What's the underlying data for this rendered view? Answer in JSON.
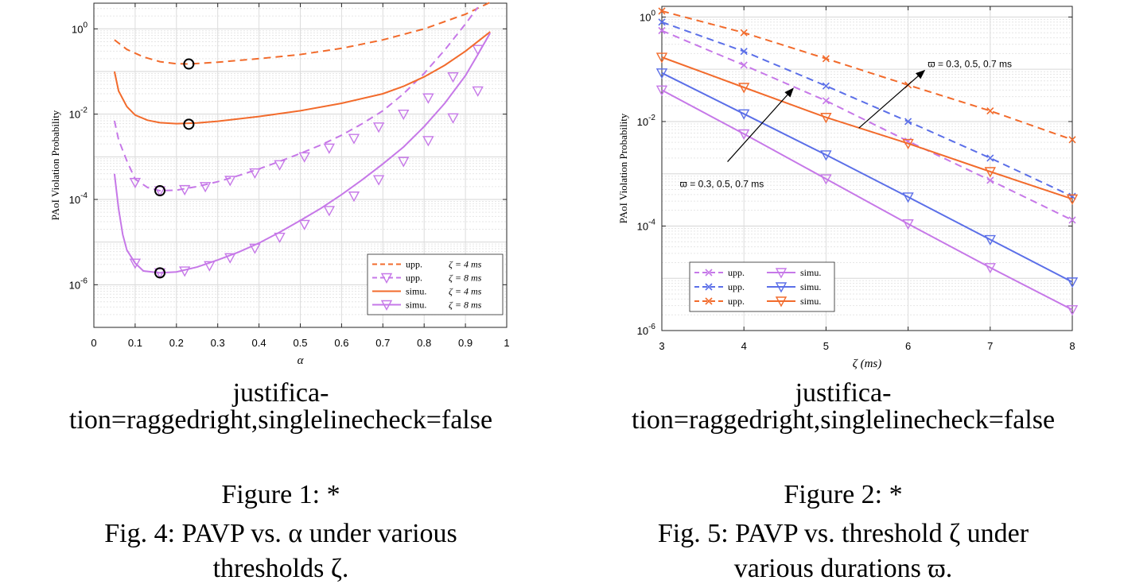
{
  "figures": [
    {
      "justification": "justifica-\ntion=raggedright,singlelinecheck=false",
      "figure_label": "Figure 1: *",
      "description": "Fig. 4: PAVP vs. α under various\nthresholds ζ."
    },
    {
      "justification": "justifica-\ntion=raggedright,singlelinecheck=false",
      "figure_label": "Figure 2: *",
      "description": "Fig. 5: PAVP vs. threshold ζ under\nvarious durations ϖ."
    }
  ],
  "chart_data": [
    {
      "type": "line",
      "xlabel": "α",
      "ylabel": "PAoI Violation Probability",
      "xlim": [
        0,
        1
      ],
      "ylim": [
        1e-07,
        4
      ],
      "yscale": "log",
      "grid": true,
      "xticks": [
        0,
        0.1,
        0.2,
        0.3,
        0.4,
        0.5,
        0.6,
        0.7,
        0.8,
        0.9,
        1
      ],
      "xtick_labels": [
        "0",
        "0.1",
        "0.2",
        "0.3",
        "0.4",
        "0.5",
        "0.6",
        "0.7",
        "0.8",
        "0.9",
        "1"
      ],
      "yticks": [
        1e-06,
        0.0001,
        0.01,
        1
      ],
      "ytick_labels": [
        {
          "base": "10",
          "exp": "-6"
        },
        {
          "base": "10",
          "exp": "-4"
        },
        {
          "base": "10",
          "exp": "-2"
        },
        {
          "base": "10",
          "exp": "0"
        }
      ],
      "legend_position": "bottom-right",
      "series": [
        {
          "name": "upp.   ζ = 4 ms",
          "label": "upp.",
          "param": "ζ = 4 ms",
          "color": "#f26b2c",
          "dash": true,
          "marker": "none",
          "x": [
            0.05,
            0.08,
            0.12,
            0.16,
            0.2,
            0.23,
            0.3,
            0.4,
            0.5,
            0.6,
            0.7,
            0.8,
            0.9,
            0.96
          ],
          "y": [
            0.55,
            0.33,
            0.22,
            0.17,
            0.152,
            0.15,
            0.165,
            0.2,
            0.25,
            0.35,
            0.55,
            1.0,
            2.2,
            4.2
          ]
        },
        {
          "name": "upp.   ζ = 8 ms",
          "label": "upp.",
          "param": "ζ = 8 ms",
          "color": "#c678e8",
          "dash": true,
          "marker": "triangle",
          "x": [
            0.05,
            0.06,
            0.08,
            0.1,
            0.13,
            0.16,
            0.2,
            0.25,
            0.3,
            0.35,
            0.4,
            0.45,
            0.5,
            0.55,
            0.6,
            0.65,
            0.7,
            0.75,
            0.8,
            0.85,
            0.9,
            0.93
          ],
          "y": [
            0.007,
            0.0025,
            0.0008,
            0.0003,
            0.00019,
            0.00016,
            0.000165,
            0.0002,
            0.00026,
            0.00036,
            0.00052,
            0.00078,
            0.0012,
            0.0019,
            0.0032,
            0.006,
            0.012,
            0.03,
            0.09,
            0.32,
            1.3,
            3.2
          ],
          "marker_x": [
            0.1,
            0.16,
            0.22,
            0.27,
            0.33,
            0.39,
            0.45,
            0.51,
            0.57,
            0.63,
            0.69,
            0.75,
            0.81,
            0.87,
            0.93
          ],
          "marker_y": [
            0.00025,
            0.00016,
            0.00017,
            0.0002,
            0.00028,
            0.00042,
            0.00065,
            0.001,
            0.0016,
            0.0027,
            0.005,
            0.01,
            0.024,
            0.075,
            0.33
          ]
        },
        {
          "name": "simu.   ζ = 4 ms",
          "label": "simu.",
          "param": "ζ = 4 ms",
          "color": "#f26b2c",
          "dash": false,
          "marker": "none",
          "x": [
            0.05,
            0.06,
            0.08,
            0.1,
            0.13,
            0.16,
            0.2,
            0.25,
            0.3,
            0.4,
            0.5,
            0.6,
            0.7,
            0.75,
            0.8,
            0.85,
            0.9,
            0.96
          ],
          "y": [
            0.1,
            0.035,
            0.015,
            0.0095,
            0.0072,
            0.0063,
            0.006,
            0.0062,
            0.0068,
            0.0088,
            0.012,
            0.018,
            0.03,
            0.045,
            0.075,
            0.14,
            0.3,
            0.85
          ]
        },
        {
          "name": "simu.   ζ = 8 ms",
          "label": "simu.",
          "param": "ζ = 8 ms",
          "color": "#c678e8",
          "dash": false,
          "marker": "triangle",
          "x": [
            0.05,
            0.06,
            0.07,
            0.08,
            0.1,
            0.12,
            0.16,
            0.2,
            0.25,
            0.3,
            0.35,
            0.4,
            0.45,
            0.5,
            0.55,
            0.6,
            0.65,
            0.7,
            0.75,
            0.8,
            0.85,
            0.9,
            0.93,
            0.96
          ],
          "y": [
            0.0004,
            6e-05,
            1.5e-05,
            6.5e-06,
            3.2e-06,
            2.1e-06,
            1.9e-06,
            2e-06,
            2.6e-06,
            3.8e-06,
            5.8e-06,
            9.5e-06,
            1.7e-05,
            3.2e-05,
            6.2e-05,
            0.00013,
            0.00029,
            0.00068,
            0.0017,
            0.0051,
            0.018,
            0.08,
            0.25,
            0.8
          ],
          "marker_x": [
            0.1,
            0.16,
            0.22,
            0.28,
            0.33,
            0.39,
            0.45,
            0.51,
            0.57,
            0.63,
            0.69,
            0.75,
            0.81,
            0.87,
            0.93
          ],
          "marker_y": [
            3.2e-06,
            1.9e-06,
            2.1e-06,
            2.8e-06,
            4.3e-06,
            7.2e-06,
            1.3e-05,
            2.6e-05,
            5.5e-05,
            0.00012,
            0.00029,
            0.00078,
            0.0024,
            0.0082,
            0.035
          ]
        }
      ],
      "annotations": [
        {
          "type": "circle",
          "x": 0.23,
          "y": 0.15
        },
        {
          "type": "circle",
          "x": 0.23,
          "y": 0.0058
        },
        {
          "type": "circle",
          "x": 0.16,
          "y": 0.00016
        },
        {
          "type": "circle",
          "x": 0.16,
          "y": 1.9e-06
        }
      ]
    },
    {
      "type": "line",
      "xlabel": "ζ (ms)",
      "ylabel": "PAoI Violation Probability",
      "xlim": [
        3,
        8
      ],
      "ylim": [
        1e-06,
        1.6
      ],
      "yscale": "log",
      "grid": true,
      "xticks": [
        3,
        4,
        5,
        6,
        7,
        8
      ],
      "xtick_labels": [
        "3",
        "4",
        "5",
        "6",
        "7",
        "8"
      ],
      "yticks": [
        1e-06,
        0.0001,
        0.01,
        1
      ],
      "ytick_labels": [
        {
          "base": "10",
          "exp": "-6"
        },
        {
          "base": "10",
          "exp": "-4"
        },
        {
          "base": "10",
          "exp": "-2"
        },
        {
          "base": "10",
          "exp": "0"
        }
      ],
      "legend_position": "bottom-left",
      "series": [
        {
          "name": "upp. ϖ = 0.3 ms",
          "label": "upp.",
          "color": "#c678e8",
          "dash": true,
          "marker": "x",
          "x": [
            3,
            4,
            5,
            6,
            7,
            8
          ],
          "y": [
            0.55,
            0.12,
            0.025,
            0.0042,
            0.00075,
            0.00013
          ]
        },
        {
          "name": "upp. ϖ = 0.5 ms",
          "label": "upp.",
          "color": "#5b6fe8",
          "dash": true,
          "marker": "x",
          "x": [
            3,
            4,
            5,
            6,
            7,
            8
          ],
          "y": [
            0.8,
            0.22,
            0.048,
            0.01,
            0.002,
            0.00037
          ]
        },
        {
          "name": "upp. ϖ = 0.7 ms",
          "label": "upp.",
          "color": "#f26b2c",
          "dash": true,
          "marker": "x",
          "x": [
            3,
            4,
            5,
            6,
            7,
            8
          ],
          "y": [
            1.3,
            0.5,
            0.16,
            0.05,
            0.016,
            0.0045
          ]
        },
        {
          "name": "simu. ϖ = 0.3 ms",
          "label": "simu.",
          "color": "#c678e8",
          "dash": false,
          "marker": "triangle",
          "x": [
            3,
            4,
            5,
            6,
            7,
            8
          ],
          "y": [
            0.04,
            0.0058,
            0.0008,
            0.00011,
            1.6e-05,
            2.5e-06
          ]
        },
        {
          "name": "simu. ϖ = 0.5 ms",
          "label": "simu.",
          "color": "#5b6fe8",
          "dash": false,
          "marker": "triangle",
          "x": [
            3,
            4,
            5,
            6,
            7,
            8
          ],
          "y": [
            0.085,
            0.014,
            0.0023,
            0.00036,
            5.5e-05,
            8.5e-06
          ]
        },
        {
          "name": "simu. ϖ = 0.7 ms",
          "label": "simu.",
          "color": "#f26b2c",
          "dash": false,
          "marker": "triangle",
          "x": [
            3,
            4,
            5,
            6,
            7,
            8
          ],
          "y": [
            0.17,
            0.045,
            0.012,
            0.0038,
            0.0011,
            0.00033
          ]
        }
      ],
      "annotations": [
        {
          "type": "arrow",
          "text": "ϖ = 0.3, 0.5, 0.7 ms",
          "from": [
            5.4,
            0.0075
          ],
          "to": [
            6.2,
            0.095
          ]
        },
        {
          "type": "arrow",
          "text": "ϖ = 0.3, 0.5, 0.7 ms",
          "from": [
            3.8,
            0.0017
          ],
          "to": [
            4.6,
            0.043
          ]
        }
      ]
    }
  ]
}
